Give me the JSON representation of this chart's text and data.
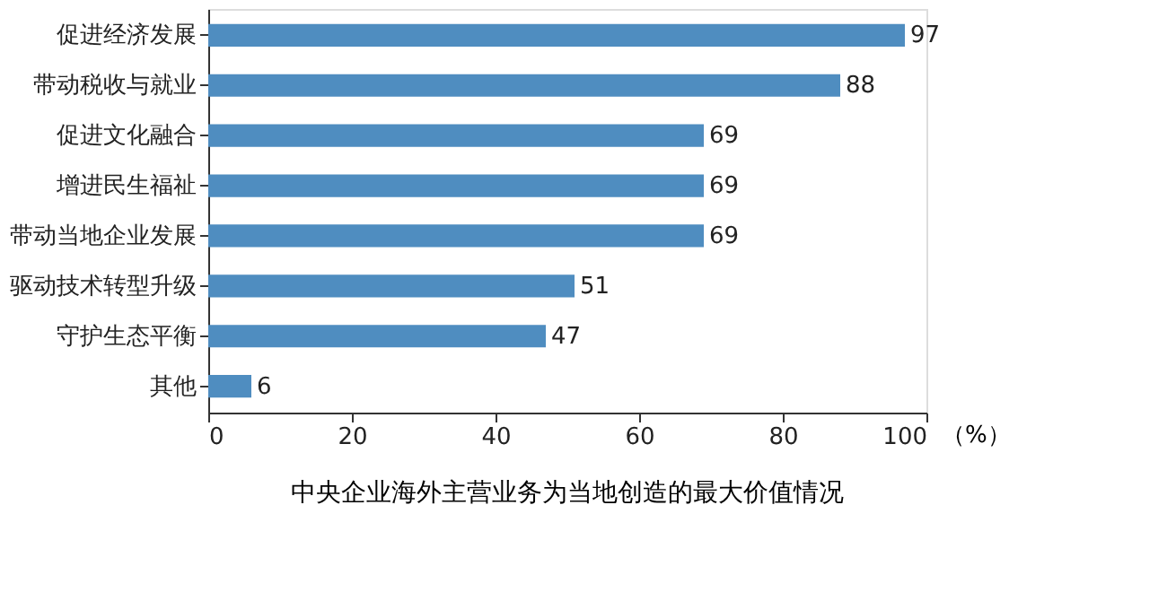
{
  "chart_data": {
    "type": "bar",
    "orientation": "horizontal",
    "title": "中央企业海外主营业务为当地创造的最大价值情况",
    "xlabel": "（%）",
    "categories": [
      "促进经济发展",
      "带动税收与就业",
      "促进文化融合",
      "增进民生福祉",
      "带动当地企业发展",
      "驱动技术转型升级",
      "守护生态平衡",
      "其他"
    ],
    "values": [
      97,
      88,
      69,
      69,
      69,
      51,
      47,
      6
    ],
    "color": "#4f8dc0",
    "xlim": [
      0,
      100
    ],
    "xticks": [
      0,
      20,
      40,
      60,
      80,
      100
    ],
    "data_labels": true,
    "grid": false
  }
}
